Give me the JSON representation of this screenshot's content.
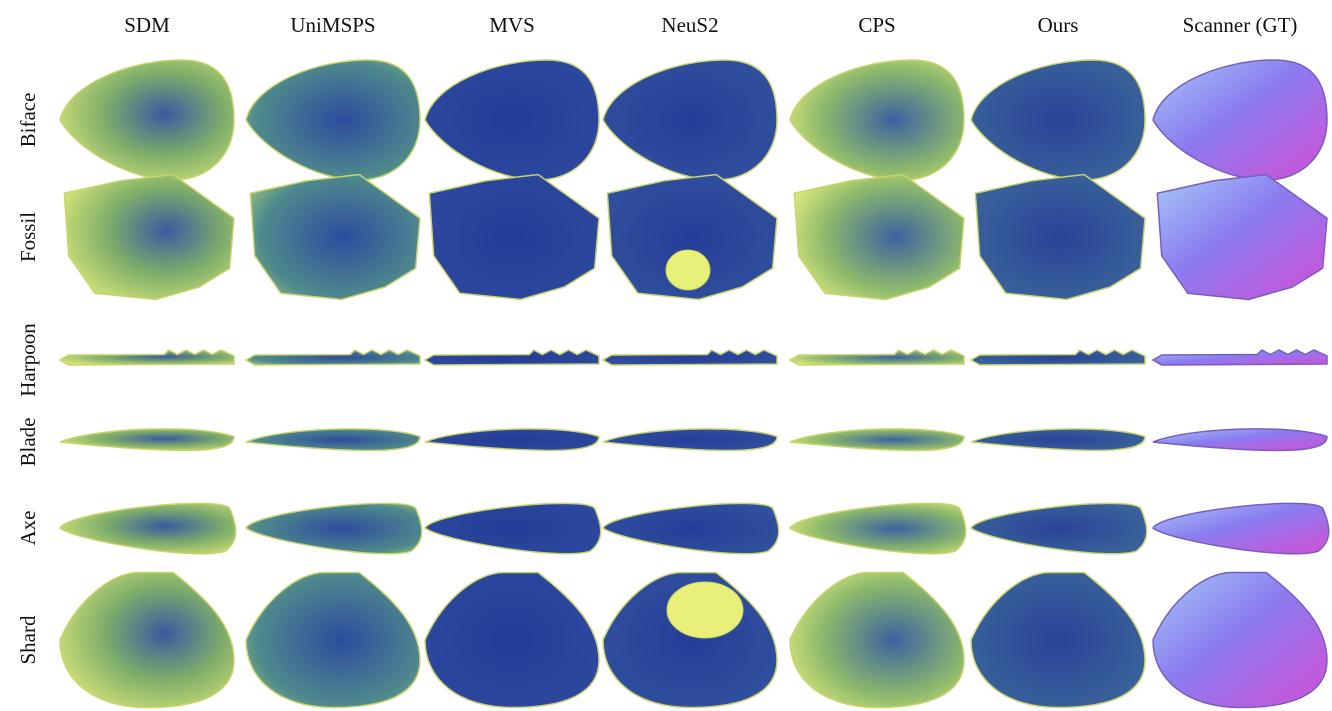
{
  "columns": [
    "SDM",
    "UniMSPS",
    "MVS",
    "NeuS2",
    "CPS",
    "Ours",
    "Scanner (GT)"
  ],
  "rows": [
    "Biface",
    "Fossil",
    "Harpoon",
    "Blade",
    "Axe",
    "Shard"
  ]
}
